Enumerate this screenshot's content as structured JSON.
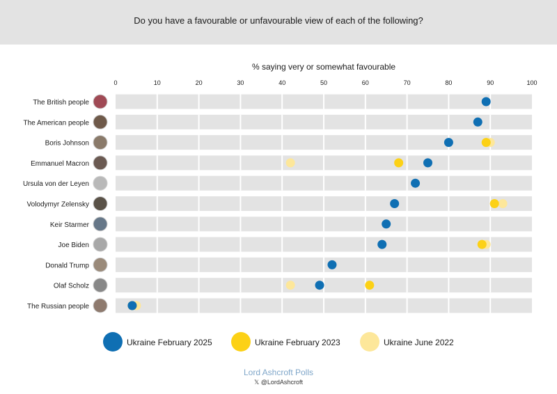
{
  "header": {
    "title": "Do you have a favourable or unfavourable view of each of the following?"
  },
  "footer": {
    "brand": "Lord Ashcroft Polls",
    "handle": "𝕏 @LordAshcroft"
  },
  "chart_data": {
    "type": "dot",
    "title": "Do you have a favourable or unfavourable view of each of the following?",
    "xlabel": "% saying very or somewhat favourable",
    "xlim": [
      0,
      100
    ],
    "xticks": [
      0,
      10,
      20,
      30,
      40,
      50,
      60,
      70,
      80,
      90,
      100
    ],
    "legend_position": "bottom",
    "categories": [
      "The British people",
      "The American people",
      "Boris Johnson",
      "Emmanuel Macron",
      "Ursula von der Leyen",
      "Volodymyr Zelensky",
      "Keir Starmer",
      "Joe Biden",
      "Donald Trump",
      "Olaf Scholz",
      "The Russian people"
    ],
    "series": [
      {
        "name": "Ukraine June 2022",
        "color": "#fde79a",
        "values": [
          null,
          null,
          90,
          42,
          null,
          93,
          null,
          89,
          null,
          42,
          5
        ]
      },
      {
        "name": "Ukraine February 2023",
        "color": "#fcd116",
        "values": [
          null,
          null,
          89,
          68,
          null,
          91,
          null,
          88,
          null,
          61,
          4
        ]
      },
      {
        "name": "Ukraine February 2025",
        "color": "#0f6fb3",
        "values": [
          89,
          87,
          80,
          75,
          72,
          67,
          65,
          64,
          52,
          49,
          4
        ]
      }
    ],
    "legend_order": [
      "Ukraine February 2025",
      "Ukraine February 2023",
      "Ukraine June 2022"
    ]
  }
}
